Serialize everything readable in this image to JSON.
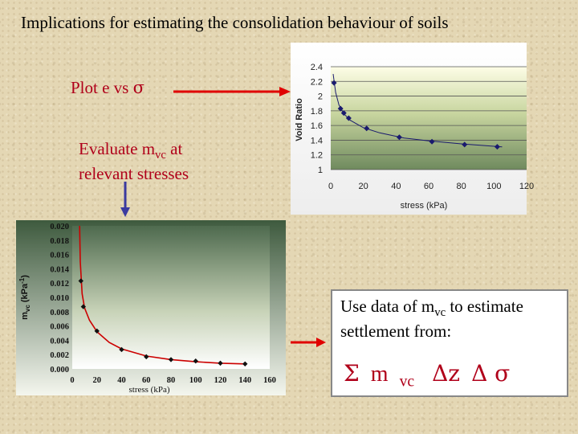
{
  "title": "Implications for estimating the consolidation behaviour of soils",
  "steps": {
    "plot_prefix": "Plot e vs ",
    "sigma": "σ",
    "evaluate_prefix": "Evaluate m",
    "evaluate_sub": "vc",
    "evaluate_suffix": " at",
    "evaluate_line2": "relevant stresses"
  },
  "info_box": {
    "line1_prefix": "Use data of m",
    "line1_sub": "vc",
    "line1_suffix": " to estimate",
    "line2": "settlement from:",
    "formula": {
      "sum": "Σ",
      "m": "m",
      "m_sub": "vc",
      "delta_z": "Δz",
      "delta_sigma": "Δ σ"
    }
  },
  "colors": {
    "accent_red": "#b0001a",
    "marker": "#1a1a6e",
    "curve": "#cc0000"
  },
  "chart_data": [
    {
      "type": "scatter",
      "xlabel": "stress (kPa)",
      "ylabel": "Void Ratio",
      "xlim": [
        0,
        120
      ],
      "ylim": [
        1,
        2.4
      ],
      "xticks": [
        "0",
        "20",
        "40",
        "60",
        "80",
        "100",
        "120"
      ],
      "yticks": [
        "1",
        "1.2",
        "1.4",
        "1.6",
        "1.8",
        "2",
        "2.2",
        "2.4"
      ],
      "grid": true,
      "points": [
        {
          "x": 2,
          "y": 2.18
        },
        {
          "x": 6,
          "y": 1.83
        },
        {
          "x": 8,
          "y": 1.77
        },
        {
          "x": 11,
          "y": 1.7
        },
        {
          "x": 22,
          "y": 1.56
        },
        {
          "x": 42,
          "y": 1.44
        },
        {
          "x": 62,
          "y": 1.38
        },
        {
          "x": 82,
          "y": 1.34
        },
        {
          "x": 102,
          "y": 1.31
        }
      ],
      "trend": [
        {
          "x": 1.5,
          "y": 2.3
        },
        {
          "x": 3,
          "y": 2.05
        },
        {
          "x": 5,
          "y": 1.88
        },
        {
          "x": 8,
          "y": 1.76
        },
        {
          "x": 12,
          "y": 1.67
        },
        {
          "x": 20,
          "y": 1.57
        },
        {
          "x": 30,
          "y": 1.5
        },
        {
          "x": 45,
          "y": 1.43
        },
        {
          "x": 60,
          "y": 1.39
        },
        {
          "x": 80,
          "y": 1.35
        },
        {
          "x": 105,
          "y": 1.31
        }
      ]
    },
    {
      "type": "scatter",
      "xlabel": "stress (kPa)",
      "ylabel": "mvc (kPa-1)",
      "ylabel_main": "m",
      "ylabel_sub": "vc",
      "ylabel_unit": " (kPa",
      "ylabel_sup": "-1",
      "ylabel_close": ")",
      "xlim": [
        0,
        160
      ],
      "ylim": [
        0,
        0.02
      ],
      "xticks": [
        "0",
        "20",
        "40",
        "60",
        "80",
        "100",
        "120",
        "140",
        "160"
      ],
      "yticks": [
        "0.000",
        "0.002",
        "0.004",
        "0.006",
        "0.008",
        "0.010",
        "0.012",
        "0.014",
        "0.016",
        "0.018",
        "0.020"
      ],
      "grid": false,
      "points": [
        {
          "x": 7,
          "y": 0.0123
        },
        {
          "x": 9,
          "y": 0.0087
        },
        {
          "x": 20,
          "y": 0.0053
        },
        {
          "x": 40,
          "y": 0.0027
        },
        {
          "x": 60,
          "y": 0.0017
        },
        {
          "x": 80,
          "y": 0.0013
        },
        {
          "x": 100,
          "y": 0.0011
        },
        {
          "x": 120,
          "y": 0.0008
        },
        {
          "x": 140,
          "y": 0.0007
        }
      ],
      "trend": [
        {
          "x": 6,
          "y": 0.02
        },
        {
          "x": 6.5,
          "y": 0.015
        },
        {
          "x": 8,
          "y": 0.0105
        },
        {
          "x": 10,
          "y": 0.0085
        },
        {
          "x": 14,
          "y": 0.0068
        },
        {
          "x": 20,
          "y": 0.0052
        },
        {
          "x": 30,
          "y": 0.0037
        },
        {
          "x": 40,
          "y": 0.0028
        },
        {
          "x": 60,
          "y": 0.0018
        },
        {
          "x": 80,
          "y": 0.0013
        },
        {
          "x": 100,
          "y": 0.001
        },
        {
          "x": 120,
          "y": 0.0008
        },
        {
          "x": 140,
          "y": 0.0007
        }
      ]
    }
  ]
}
